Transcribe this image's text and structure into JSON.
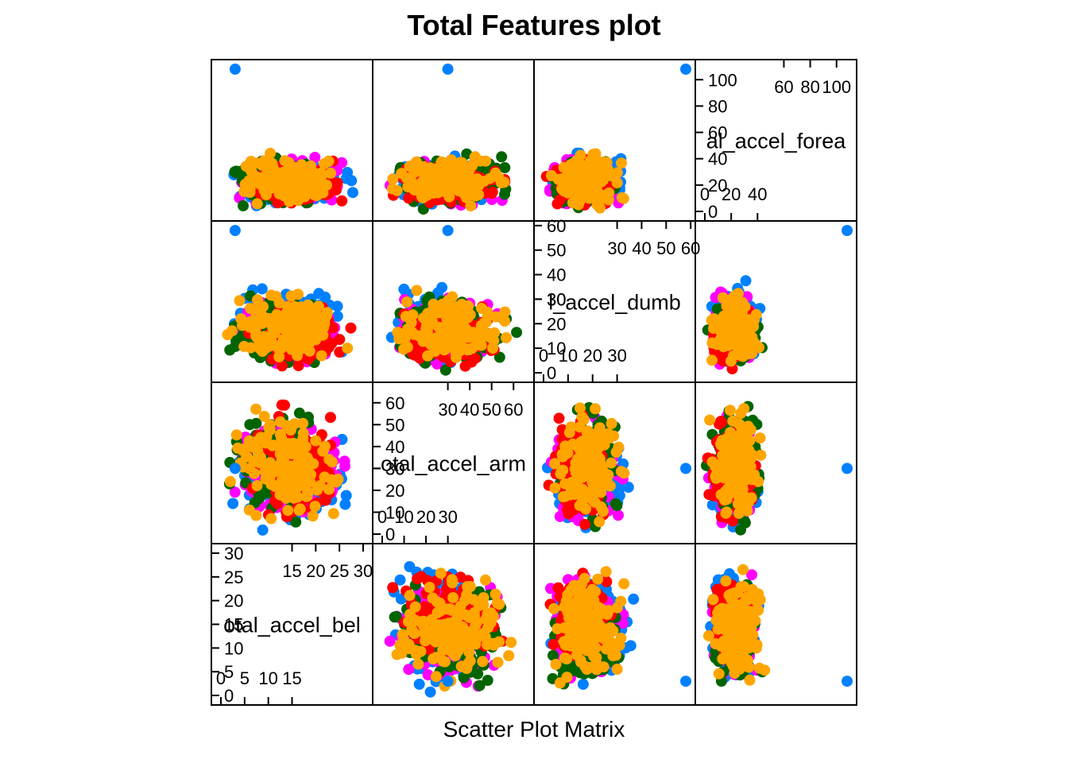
{
  "chart_data": {
    "type": "scatter",
    "title": "Total Features plot",
    "xlabel": "Scatter Plot Matrix",
    "variables": [
      {
        "name": "total_accel_belt",
        "range": [
          0,
          30
        ],
        "ticks_lower": [
          0,
          5,
          10,
          15
        ],
        "ticks_upper": [
          15,
          20,
          25,
          30
        ]
      },
      {
        "name": "total_accel_arm",
        "range": [
          0,
          65
        ],
        "ticks_lower": [
          0,
          10,
          20,
          30
        ],
        "ticks_upper": [
          30,
          40,
          50,
          60
        ]
      },
      {
        "name": "total_accel_dumbbell",
        "range": [
          0,
          58
        ],
        "ticks_lower": [
          0,
          10,
          20,
          30
        ],
        "ticks_upper": [
          30,
          40,
          50,
          60
        ]
      },
      {
        "name": "total_accel_forearm",
        "range": [
          0,
          108
        ],
        "ticks_lower": [
          0,
          20,
          40
        ],
        "ticks_upper": [
          60,
          80,
          100
        ]
      }
    ],
    "panel_labels_clipped": {
      "total_accel_belt": "otal_accel_bel",
      "total_accel_arm": "otal_accel_arm",
      "total_accel_dumbbell": "l_accel_dumb",
      "total_accel_forearm": "al_accel_forea"
    },
    "series_colors": [
      "#0080ff",
      "#ff00ff",
      "#006400",
      "#ff0000",
      "#ffa500"
    ],
    "clusters": [
      {
        "color": "#0080ff",
        "belt": [
          0,
          30
        ],
        "arm": [
          0,
          48
        ],
        "dumbbell": [
          0,
          40
        ],
        "forearm": [
          0,
          45
        ]
      },
      {
        "color": "#ff00ff",
        "belt": [
          0,
          28
        ],
        "arm": [
          0,
          58
        ],
        "dumbbell": [
          0,
          36
        ],
        "forearm": [
          0,
          44
        ]
      },
      {
        "color": "#006400",
        "belt": [
          0,
          25
        ],
        "arm": [
          0,
          64
        ],
        "dumbbell": [
          0,
          33
        ],
        "forearm": [
          0,
          46
        ]
      },
      {
        "color": "#ff0000",
        "belt": [
          5,
          28
        ],
        "arm": [
          0,
          60
        ],
        "dumbbell": [
          0,
          30
        ],
        "forearm": [
          0,
          42
        ]
      },
      {
        "color": "#ffa500",
        "belt": [
          0,
          28
        ],
        "arm": [
          0,
          64
        ],
        "dumbbell": [
          0,
          36
        ],
        "forearm": [
          0,
          48
        ]
      }
    ],
    "outlier": {
      "color": "#0080ff",
      "belt": 3,
      "arm": 30,
      "dumbbell": 58,
      "forearm": 108
    }
  }
}
